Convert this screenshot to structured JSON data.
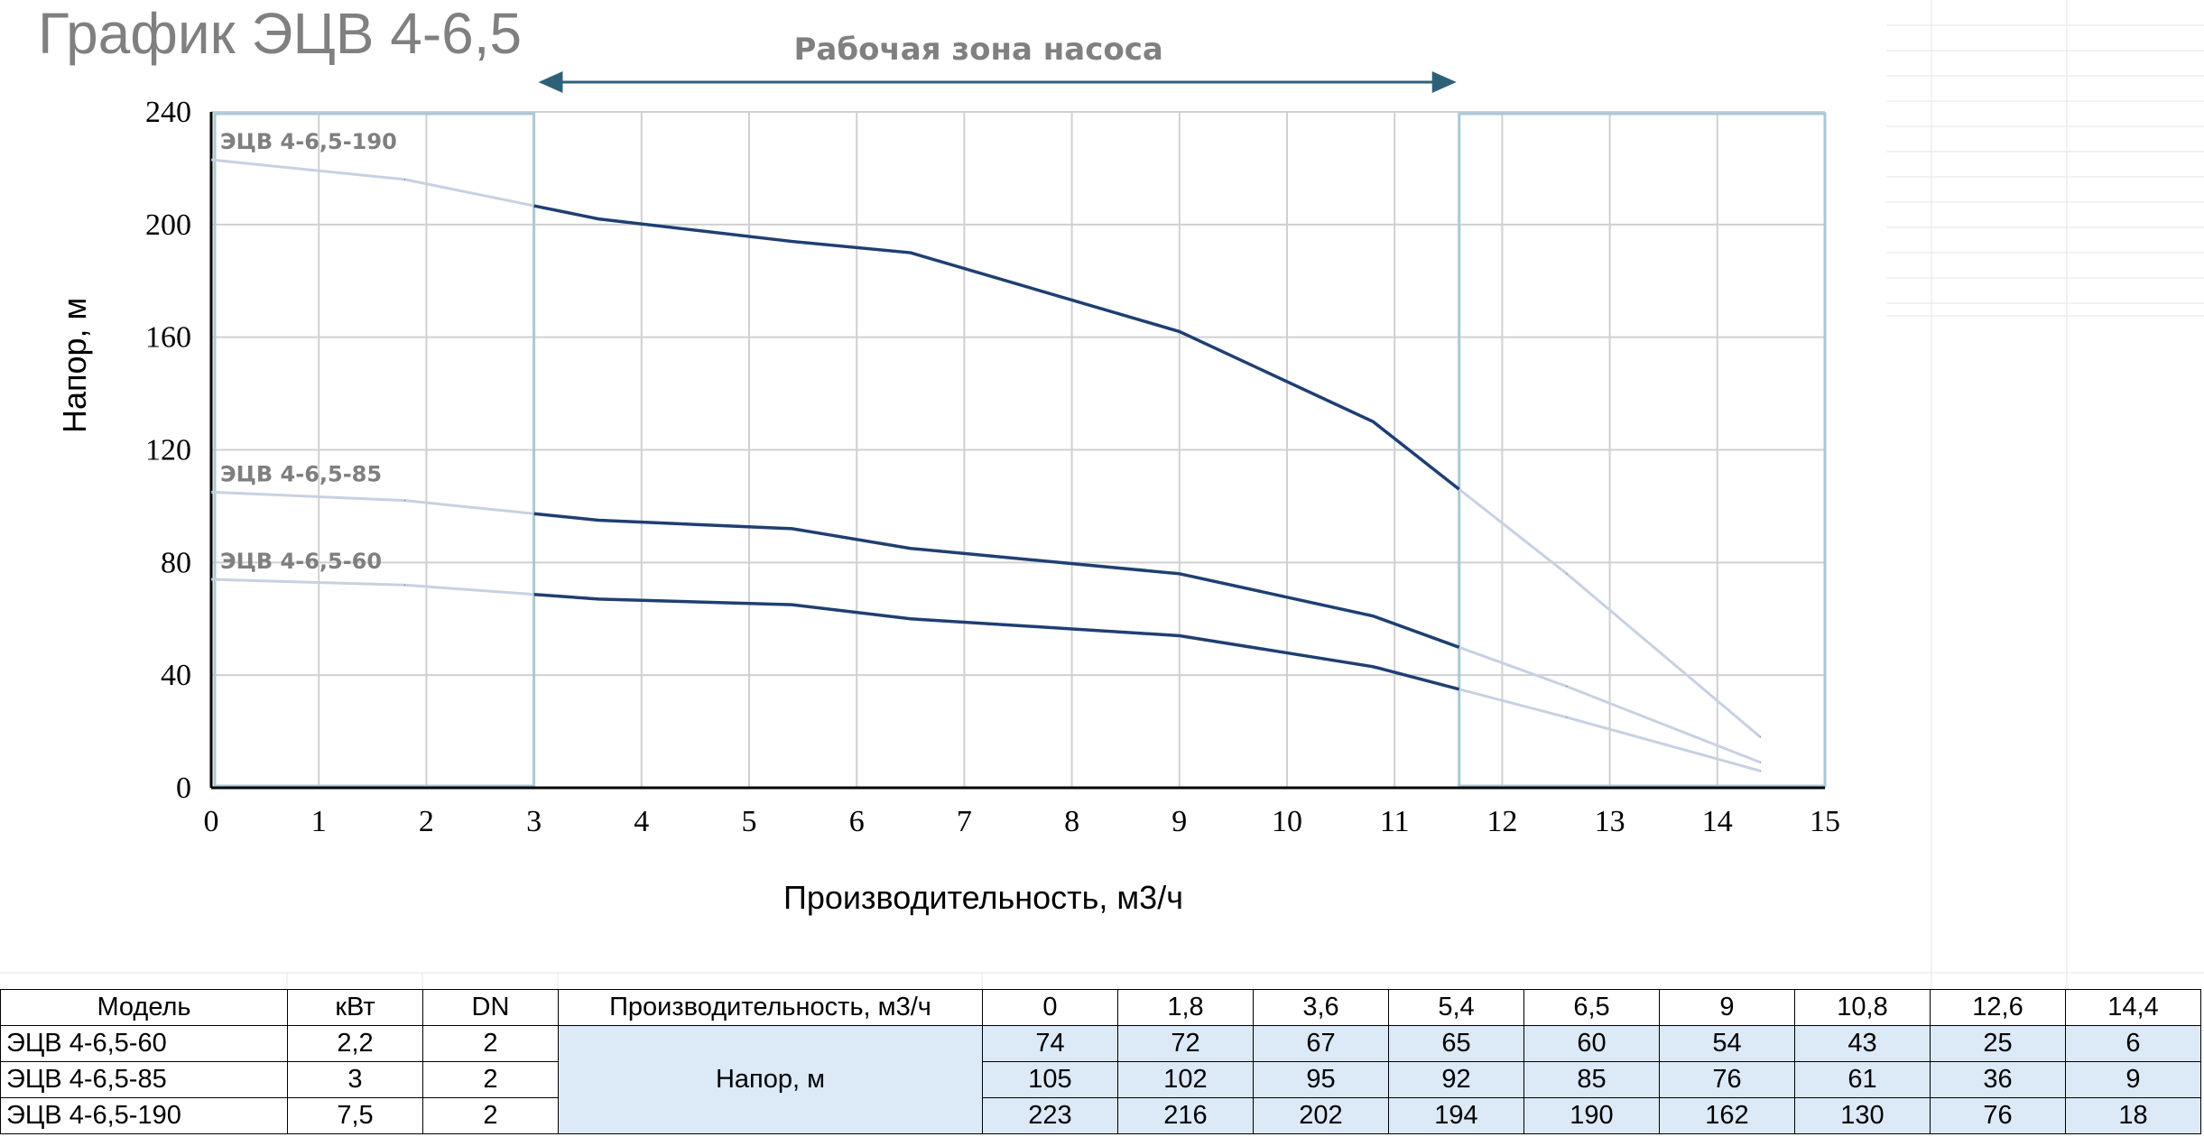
{
  "title": "График ЭЦВ 4-6,5",
  "zone_label": "Рабочая зона насоса",
  "chart_data": {
    "type": "line",
    "xlabel": "Производительность, м3/ч",
    "ylabel": "Напор, м",
    "xlim": [
      0,
      15
    ],
    "ylim": [
      0,
      240
    ],
    "x_ticks": [
      "0",
      "1",
      "2",
      "3",
      "4",
      "5",
      "6",
      "7",
      "8",
      "9",
      "10",
      "11",
      "12",
      "13",
      "14",
      "15"
    ],
    "y_ticks": [
      "0",
      "40",
      "80",
      "120",
      "160",
      "200",
      "240"
    ],
    "grid": true,
    "working_zone": [
      3,
      11.6
    ],
    "x": [
      0,
      1.8,
      3.6,
      5.4,
      6.5,
      9,
      10.8,
      12.6,
      14.4
    ],
    "series": [
      {
        "name": "ЭЦВ 4-6,5-60",
        "values": [
          74,
          72,
          67,
          65,
          60,
          54,
          43,
          25,
          6
        ]
      },
      {
        "name": "ЭЦВ 4-6,5-85",
        "values": [
          105,
          102,
          95,
          92,
          85,
          76,
          61,
          36,
          9
        ]
      },
      {
        "name": "ЭЦВ 4-6,5-190",
        "values": [
          223,
          216,
          202,
          194,
          190,
          162,
          130,
          76,
          18
        ]
      }
    ],
    "colors": {
      "in_zone": "#1f3f73",
      "out_zone": "#c7d1e2",
      "zone_border": "#a9c9d6",
      "grid": "#d0d0d0"
    }
  },
  "table": {
    "headers": {
      "model": "Модель",
      "kw": "кВт",
      "dn": "DN",
      "flow": "Производительность, м3/ч"
    },
    "flow_values": [
      "0",
      "1,8",
      "3,6",
      "5,4",
      "6,5",
      "9",
      "10,8",
      "12,6",
      "14,4"
    ],
    "head_label": "Напор, м",
    "rows": [
      {
        "model": "ЭЦВ 4-6,5-60",
        "kw": "2,2",
        "dn": "2",
        "values": [
          "74",
          "72",
          "67",
          "65",
          "60",
          "54",
          "43",
          "25",
          "6"
        ]
      },
      {
        "model": "ЭЦВ 4-6,5-85",
        "kw": "3",
        "dn": "2",
        "values": [
          "105",
          "102",
          "95",
          "92",
          "85",
          "76",
          "61",
          "36",
          "9"
        ]
      },
      {
        "model": "ЭЦВ 4-6,5-190",
        "kw": "7,5",
        "dn": "2",
        "values": [
          "223",
          "216",
          "202",
          "194",
          "190",
          "162",
          "130",
          "76",
          "18"
        ]
      }
    ]
  }
}
